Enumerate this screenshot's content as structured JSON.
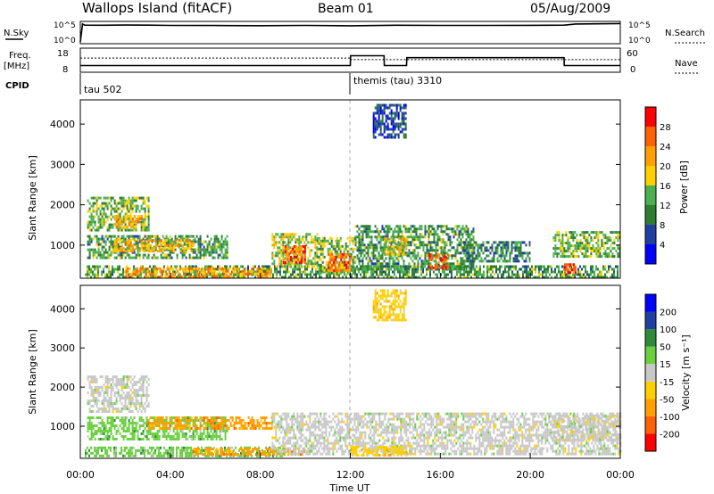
{
  "header": {
    "station": "Wallops Island (fitACF)",
    "beam": "Beam 01",
    "date": "05/Aug/2009"
  },
  "top_panels": {
    "nsky_label": "N.Sky",
    "nsky_ticks": [
      "10^5",
      "10^0"
    ],
    "nsearch_label": "N.Search",
    "nsearch_ticks": [
      "10^5",
      "10^0"
    ],
    "freq_label": "Freq.",
    "freq_unit": "[MHz]",
    "freq_ticks": [
      "18",
      "8"
    ],
    "nave_label": "Nave",
    "nave_ticks": [
      "60",
      "0"
    ],
    "cpid_label": "CPID",
    "cpid_segments": [
      {
        "label": "tau 502",
        "start_hour": 0
      },
      {
        "label": "themis (tau) 3310",
        "start_hour": 12
      }
    ]
  },
  "colors": {
    "power": [
      "#0000ff",
      "#2040a0",
      "#2e7d32",
      "#4caf50",
      "#ffd000",
      "#ffa000",
      "#ff6000",
      "#ff0000"
    ],
    "velocity": [
      "#ff0000",
      "#ff6000",
      "#ffa000",
      "#ffd000",
      "#c8c8c8",
      "#6ad040",
      "#2e8b3a",
      "#2040a0",
      "#0000ff"
    ]
  },
  "chart_data": [
    {
      "type": "line",
      "name": "sky_noise_search_noise",
      "xlim": [
        0,
        24
      ],
      "series": [
        {
          "name": "N.Sky",
          "x": [
            0,
            0.1,
            0.2,
            1,
            2,
            3,
            4,
            6,
            8,
            10,
            12,
            14,
            16,
            18,
            20,
            21.5,
            22,
            23,
            24
          ],
          "y": [
            1,
            60000,
            30000,
            28000,
            32000,
            30000,
            26000,
            24000,
            22000,
            25000,
            20000,
            28000,
            26000,
            25000,
            27000,
            30000,
            60000,
            70000,
            80000
          ]
        }
      ]
    },
    {
      "type": "line",
      "name": "freq_nave",
      "xlim": [
        0,
        24
      ],
      "series": [
        {
          "name": "Freq.",
          "x": [
            0,
            12,
            12.01,
            13.5,
            13.51,
            14.5,
            14.51,
            21.5,
            21.51,
            24
          ],
          "y": [
            10.5,
            10.5,
            15.5,
            15.5,
            10.5,
            10.5,
            14.5,
            14.5,
            10.5,
            10.5
          ]
        },
        {
          "name": "Nave",
          "x": [
            0,
            12,
            12.01,
            24
          ],
          "y": [
            38,
            38,
            33,
            33
          ]
        }
      ]
    },
    {
      "type": "heatmap",
      "name": "power",
      "xlabel": "",
      "ylabel": "Slant Range [km]",
      "xlim": [
        0,
        24
      ],
      "ylim": [
        180,
        4600
      ],
      "yticks": [
        1000,
        2000,
        3000,
        4000
      ],
      "colorbar_label": "Power [dB]",
      "colorbar_ticks": [
        "4",
        "8",
        "12",
        "16",
        "20",
        "24",
        "28"
      ],
      "colorbar_range": [
        0,
        32
      ],
      "regions": [
        {
          "x0": 0.3,
          "x1": 3.0,
          "r0": 1400,
          "r1": 2200,
          "v": 14
        },
        {
          "x0": 1.5,
          "x1": 2.7,
          "r0": 1450,
          "r1": 1750,
          "v": 22
        },
        {
          "x0": 0.3,
          "x1": 6.5,
          "r0": 700,
          "r1": 1250,
          "v": 12
        },
        {
          "x0": 1.5,
          "x1": 5.0,
          "r0": 850,
          "r1": 1150,
          "v": 20
        },
        {
          "x0": 0.2,
          "x1": 23.9,
          "r0": 220,
          "r1": 500,
          "v": 12
        },
        {
          "x0": 2.0,
          "x1": 8.5,
          "r0": 250,
          "r1": 450,
          "v": 22
        },
        {
          "x0": 8.5,
          "x1": 10.5,
          "r0": 500,
          "r1": 1300,
          "v": 16
        },
        {
          "x0": 9.0,
          "x1": 10.0,
          "r0": 600,
          "r1": 1000,
          "v": 26
        },
        {
          "x0": 10.5,
          "x1": 12.2,
          "r0": 300,
          "r1": 1200,
          "v": 14
        },
        {
          "x0": 11.0,
          "x1": 12.0,
          "r0": 400,
          "r1": 800,
          "v": 26
        },
        {
          "x0": 12.2,
          "x1": 17.5,
          "r0": 400,
          "r1": 1500,
          "v": 12
        },
        {
          "x0": 15.5,
          "x1": 16.3,
          "r0": 450,
          "r1": 800,
          "v": 28
        },
        {
          "x0": 13.5,
          "x1": 14.5,
          "r0": 800,
          "r1": 1200,
          "v": 18
        },
        {
          "x0": 17.0,
          "x1": 20.0,
          "r0": 600,
          "r1": 1100,
          "v": 10
        },
        {
          "x0": 21.0,
          "x1": 24.0,
          "r0": 700,
          "r1": 1350,
          "v": 14
        },
        {
          "x0": 21.5,
          "x1": 22.0,
          "r0": 300,
          "r1": 550,
          "v": 26
        },
        {
          "x0": 13.0,
          "x1": 14.5,
          "r0": 3700,
          "r1": 4500,
          "v": 6
        }
      ]
    },
    {
      "type": "heatmap",
      "name": "velocity",
      "xlabel": "Time UT",
      "ylabel": "Slant Range [km]",
      "xlim": [
        0,
        24
      ],
      "ylim": [
        180,
        4600
      ],
      "yticks": [
        1000,
        2000,
        3000,
        4000
      ],
      "xticks": [
        "00:00",
        "04:00",
        "08:00",
        "12:00",
        "16:00",
        "20:00",
        "00:00"
      ],
      "xtick_hours": [
        0,
        4,
        8,
        12,
        16,
        20,
        24
      ],
      "colorbar_label": "Velocity [m s⁻¹]",
      "colorbar_ticks": [
        "-200",
        "-100",
        "-50",
        "-15",
        "15",
        "50",
        "100",
        "200"
      ],
      "regions": [
        {
          "x0": 0.3,
          "x1": 3.0,
          "r0": 1350,
          "r1": 2300,
          "c": 4
        },
        {
          "x0": 0.3,
          "x1": 6.5,
          "r0": 700,
          "r1": 1250,
          "c": 5
        },
        {
          "x0": 3.0,
          "x1": 8.5,
          "r0": 950,
          "r1": 1250,
          "c": 2
        },
        {
          "x0": 0.2,
          "x1": 9.0,
          "r0": 220,
          "r1": 480,
          "c": 5
        },
        {
          "x0": 5.0,
          "x1": 10.0,
          "r0": 250,
          "r1": 450,
          "c": 2
        },
        {
          "x0": 8.5,
          "x1": 24.0,
          "r0": 300,
          "r1": 1350,
          "c": 4
        },
        {
          "x0": 12.0,
          "x1": 14.5,
          "r0": 250,
          "r1": 500,
          "c": 3
        },
        {
          "x0": 21.0,
          "x1": 24.0,
          "r0": 650,
          "r1": 1300,
          "c": 4
        },
        {
          "x0": 13.0,
          "x1": 14.5,
          "r0": 3700,
          "r1": 4500,
          "c": 3
        }
      ]
    }
  ]
}
